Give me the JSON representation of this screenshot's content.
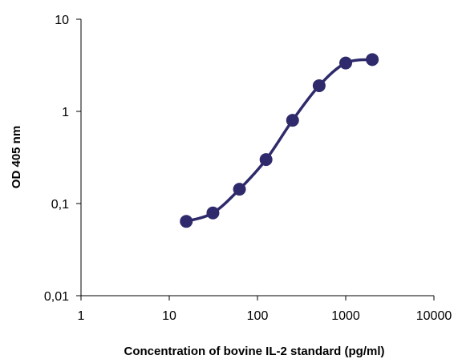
{
  "chart_data": {
    "type": "line",
    "xlabel": "Concentration of bovine IL-2 standard (pg/ml)",
    "ylabel": "OD 405 nm",
    "x_scale": "log",
    "y_scale": "log",
    "xlim": [
      1,
      10000
    ],
    "ylim": [
      0.01,
      10
    ],
    "x_ticks": [
      1,
      10,
      100,
      1000,
      10000
    ],
    "x_tick_labels": [
      "1",
      "10",
      "100",
      "1000",
      "10000"
    ],
    "y_ticks": [
      0.01,
      0.1,
      1,
      10
    ],
    "y_tick_labels": [
      "0,01",
      "0,1",
      "1",
      "10"
    ],
    "grid": false,
    "legend": "none",
    "series": [
      {
        "color": "#2e2a6b",
        "marker": "circle",
        "line": "smooth",
        "x": [
          15.6,
          31.25,
          62.5,
          125,
          250,
          500,
          1000,
          2000
        ],
        "y": [
          0.064,
          0.079,
          0.143,
          0.3,
          0.8,
          1.9,
          3.35,
          3.65
        ]
      }
    ]
  }
}
